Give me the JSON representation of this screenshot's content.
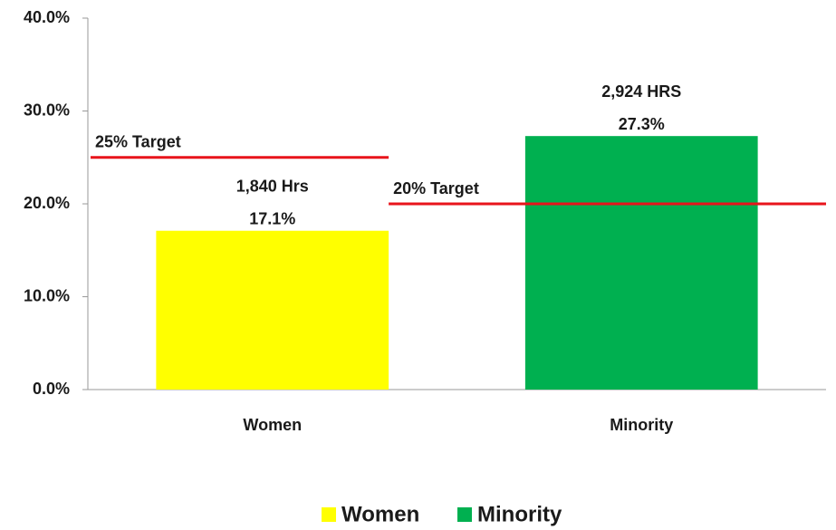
{
  "chart_data": {
    "type": "bar",
    "categories": [
      "Women",
      "Minority"
    ],
    "values": [
      17.1,
      27.3
    ],
    "value_labels": [
      "17.1%",
      "27.3%"
    ],
    "hours_labels": [
      "1,840  Hrs",
      "2,924  HRS"
    ],
    "colors": [
      "#ffff00",
      "#00b050"
    ],
    "ylim": [
      0,
      40
    ],
    "yticks": [
      {
        "value": 0,
        "label": "0.0%"
      },
      {
        "value": 10,
        "label": "10.0%"
      },
      {
        "value": 20,
        "label": "20.0%"
      },
      {
        "value": 30,
        "label": "30.0%"
      },
      {
        "value": 40,
        "label": "40.0%"
      }
    ],
    "targets": [
      {
        "label": "25% Target",
        "value": 25,
        "color": "#e8141b"
      },
      {
        "label": "20% Target",
        "value": 20,
        "color": "#e8141b"
      }
    ],
    "legend": "bottom"
  }
}
